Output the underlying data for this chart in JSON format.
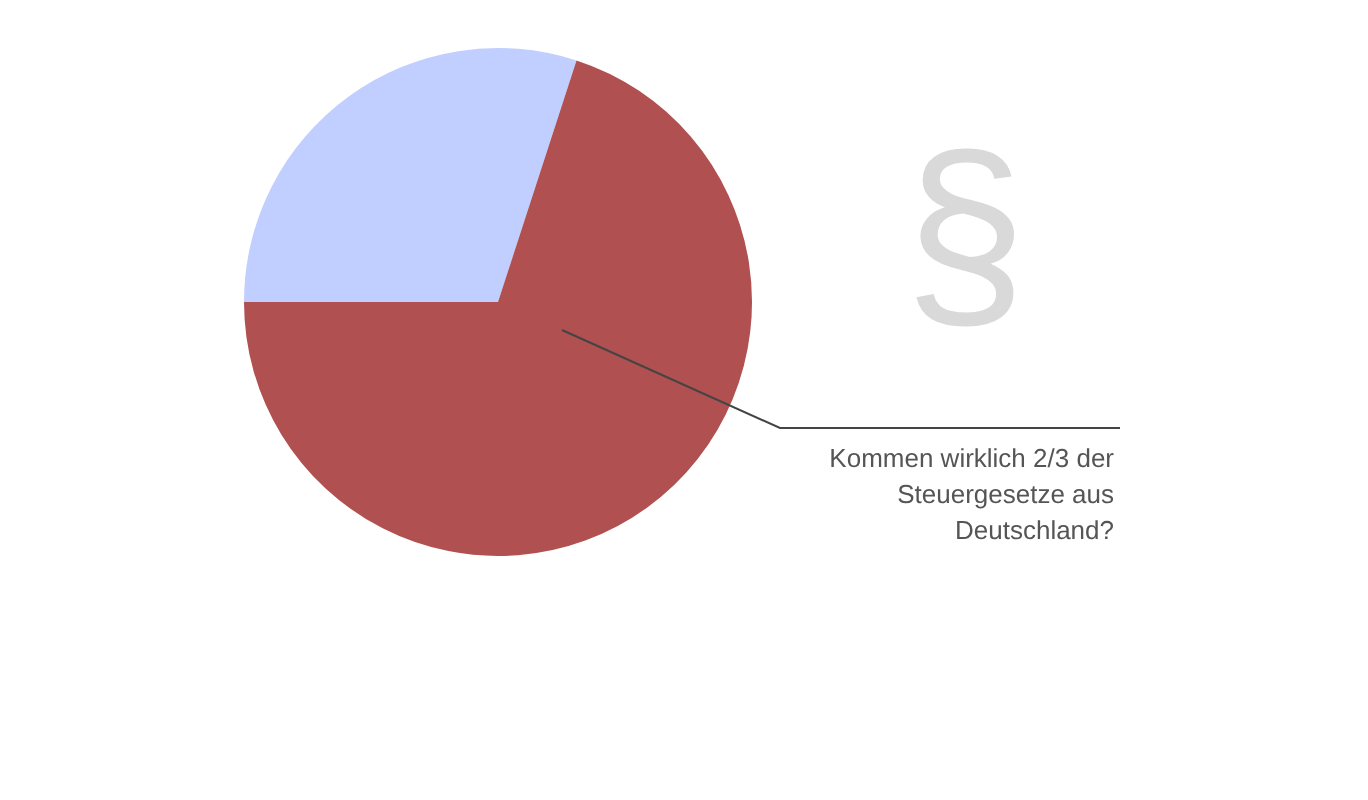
{
  "chart_data": {
    "type": "pie",
    "categories": [
      null,
      null
    ],
    "values": [
      30,
      70
    ],
    "colors": [
      "#c0cfff",
      "#b05050"
    ],
    "legend": false,
    "annotations": [
      "Kommen wirklich 2/3 der Steuergesetze aus Deutschland?",
      "§"
    ]
  }
}
